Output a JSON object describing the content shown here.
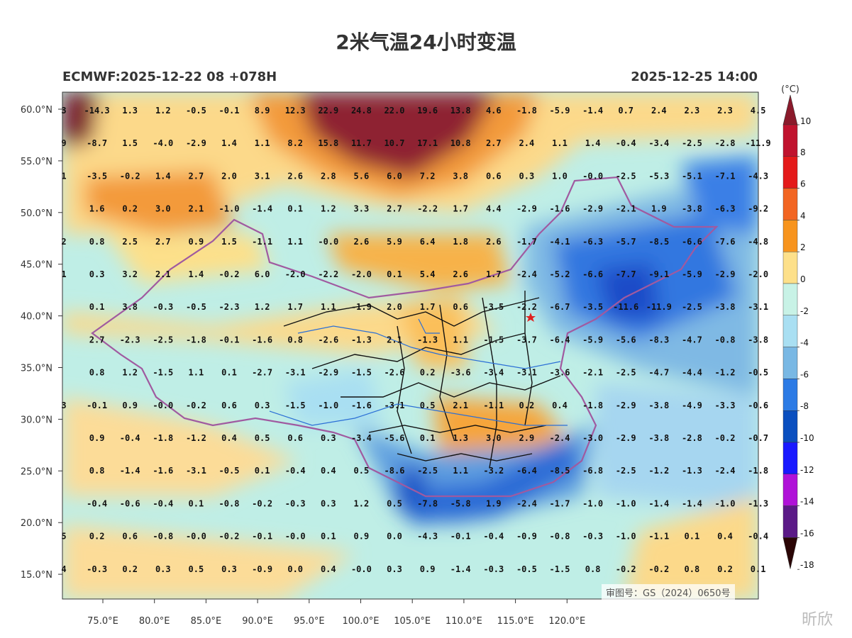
{
  "title": "2米气温24小时变温",
  "subtitle_left": "ECMWF:2025-12-22 08 +078H",
  "subtitle_right": "2025-12-25 14:00",
  "colorbar": {
    "unit": "(°C)",
    "labels": [
      "10",
      "8",
      "6",
      "4",
      "2",
      "0",
      "-2",
      "-4",
      "-6",
      "-8",
      "-10",
      "-12",
      "-14",
      "-16",
      "-18"
    ],
    "colors": [
      "#8b1a2b",
      "#c0132e",
      "#e41a1a",
      "#f26522",
      "#f7941d",
      "#fde08a",
      "#c8f2e6",
      "#a9dff2",
      "#79b8e4",
      "#2c7be5",
      "#0a4fbf",
      "#1919ff",
      "#b012d8",
      "#5b1a87",
      "#7a0a0a"
    ]
  },
  "lat_labels": [
    "60.0°N",
    "55.0°N",
    "50.0°N",
    "45.0°N",
    "40.0°N",
    "35.0°N",
    "30.0°N",
    "25.0°N",
    "20.0°N",
    "15.0°N"
  ],
  "lon_labels": [
    "75.0°E",
    "80.0°E",
    "85.0°E",
    "90.0°E",
    "95.0°E",
    "100.0°E",
    "105.0°E",
    "110.0°E",
    "115.0°E",
    "120.0°E"
  ],
  "grid_values": [
    [
      "3",
      "-14.3",
      "1.3",
      "1.2",
      "-0.5",
      "-0.1",
      "8.9",
      "12.3",
      "22.9",
      "24.8",
      "22.0",
      "19.6",
      "13.8",
      "4.6",
      "-1.8",
      "-5.9",
      "-1.4",
      "0.7",
      "2.4",
      "2.3",
      "2.3",
      "4.5"
    ],
    [
      "9",
      "-8.7",
      "1.5",
      "-4.0",
      "-2.9",
      "1.4",
      "1.1",
      "8.2",
      "15.8",
      "11.7",
      "10.7",
      "17.1",
      "10.8",
      "2.7",
      "2.4",
      "1.1",
      "1.4",
      "-0.4",
      "-3.4",
      "-2.5",
      "-2.8",
      "-11.9"
    ],
    [
      "1",
      "-3.5",
      "-0.2",
      "1.4",
      "2.7",
      "2.0",
      "3.1",
      "2.6",
      "2.8",
      "5.6",
      "6.0",
      "7.2",
      "3.8",
      "0.6",
      "0.3",
      "1.0",
      "-0.0",
      "-2.5",
      "-5.3",
      "-5.1",
      "-7.1",
      "-4.3"
    ],
    [
      "",
      "1.6",
      "0.2",
      "3.0",
      "2.1",
      "-1.0",
      "-1.4",
      "0.1",
      "1.2",
      "3.3",
      "2.7",
      "-2.2",
      "1.7",
      "4.4",
      "-2.9",
      "-1.6",
      "-2.9",
      "-2.1",
      "1.9",
      "-3.8",
      "-6.3",
      "-9.2"
    ],
    [
      "2",
      "0.8",
      "2.5",
      "2.7",
      "0.9",
      "1.5",
      "-1.1",
      "1.1",
      "-0.0",
      "2.6",
      "5.9",
      "6.4",
      "1.8",
      "2.6",
      "-1.7",
      "-4.1",
      "-6.3",
      "-5.7",
      "-8.5",
      "-6.6",
      "-7.6",
      "-4.8"
    ],
    [
      "1",
      "0.3",
      "3.2",
      "2.1",
      "1.4",
      "-0.2",
      "6.0",
      "-2.0",
      "-2.2",
      "-2.0",
      "0.1",
      "5.4",
      "2.6",
      "1.7",
      "-2.4",
      "-5.2",
      "-6.6",
      "-7.7",
      "-9.1",
      "-5.9",
      "-2.9",
      "-2.0"
    ],
    [
      "",
      "0.1",
      "3.8",
      "-0.3",
      "-0.5",
      "-2.3",
      "1.2",
      "1.7",
      "1.1",
      "-1.9",
      "2.0",
      "1.7",
      "0.6",
      "-3.5",
      "-2.2",
      "-6.7",
      "-3.5",
      "-11.6",
      "-11.9",
      "-2.5",
      "-3.8",
      "-3.1"
    ],
    [
      "",
      "2.7",
      "-2.3",
      "-2.5",
      "-1.8",
      "-0.1",
      "-1.6",
      "0.8",
      "-2.6",
      "-1.3",
      "2.1",
      "-1.3",
      "1.1",
      "-1.5",
      "-3.7",
      "-6.4",
      "-5.9",
      "-5.6",
      "-8.3",
      "-4.7",
      "-0.8",
      "-3.8"
    ],
    [
      "",
      "0.8",
      "1.2",
      "-1.5",
      "1.1",
      "0.1",
      "-2.7",
      "-3.1",
      "-2.9",
      "-1.5",
      "-2.6",
      "0.2",
      "-3.6",
      "-3.4",
      "-3.1",
      "-3.6",
      "-2.1",
      "-2.5",
      "-4.7",
      "-4.4",
      "-1.2",
      "-0.5"
    ],
    [
      "3",
      "-0.1",
      "0.9",
      "-0.0",
      "-0.2",
      "0.6",
      "0.3",
      "-1.5",
      "-1.0",
      "-1.6",
      "-3.1",
      "0.5",
      "2.1",
      "-1.1",
      "0.2",
      "0.4",
      "-1.8",
      "-2.9",
      "-3.8",
      "-4.9",
      "-3.3",
      "-0.6"
    ],
    [
      "",
      "0.9",
      "-0.4",
      "-1.8",
      "-1.2",
      "0.4",
      "0.5",
      "0.6",
      "0.3",
      "-3.4",
      "-5.6",
      "0.1",
      "1.3",
      "3.0",
      "2.9",
      "-2.4",
      "-3.0",
      "-2.9",
      "-3.8",
      "-2.8",
      "-0.2",
      "-0.7"
    ],
    [
      "",
      "0.8",
      "-1.4",
      "-1.6",
      "-3.1",
      "-0.5",
      "0.1",
      "-0.4",
      "0.4",
      "0.5",
      "-8.6",
      "-2.5",
      "1.1",
      "-3.2",
      "-6.4",
      "-8.5",
      "-6.8",
      "-2.5",
      "-1.2",
      "-1.3",
      "-2.4",
      "-1.8"
    ],
    [
      "",
      "-0.4",
      "-0.6",
      "-0.4",
      "0.1",
      "-0.8",
      "-0.2",
      "-0.3",
      "0.3",
      "1.2",
      "0.5",
      "-7.8",
      "-5.8",
      "1.9",
      "-2.4",
      "-1.7",
      "-1.0",
      "-1.0",
      "-1.4",
      "-1.4",
      "-1.0",
      "-1.3"
    ],
    [
      "5",
      "0.2",
      "0.6",
      "-0.8",
      "-0.0",
      "-0.2",
      "-0.1",
      "-0.0",
      "0.1",
      "0.9",
      "0.0",
      "-4.3",
      "-0.1",
      "-0.4",
      "-0.9",
      "-0.8",
      "-0.3",
      "-1.0",
      "-1.1",
      "0.1",
      "0.4",
      "-0.4"
    ],
    [
      "4",
      "-0.3",
      "0.2",
      "0.3",
      "0.5",
      "0.3",
      "-0.9",
      "0.0",
      "0.4",
      "-0.0",
      "0.3",
      "0.9",
      "-1.4",
      "-0.3",
      "-0.5",
      "-1.5",
      "0.8",
      "-0.2",
      "-0.2",
      "0.8",
      "0.2",
      "0.1"
    ]
  ],
  "watermark": "审图号：GS（2024）0650号",
  "brand": "昕欣"
}
